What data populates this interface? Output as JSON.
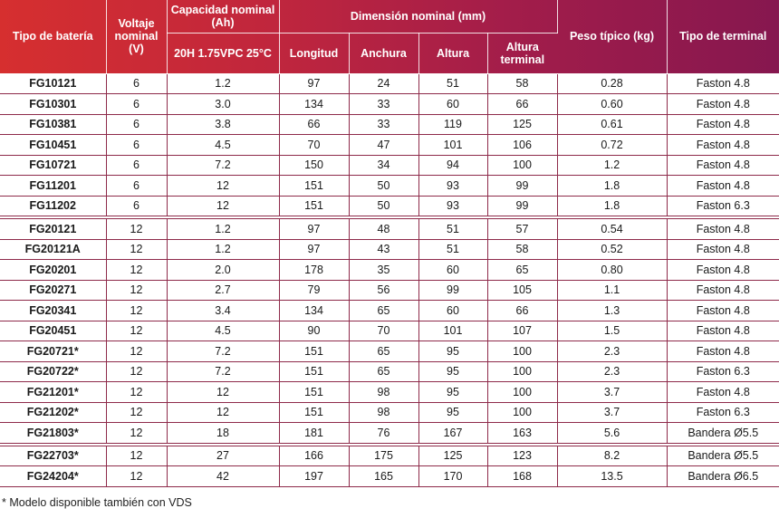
{
  "headers": {
    "tipo": "Tipo de batería",
    "voltaje": "Voltaje nominal (V)",
    "capacidad": "Capacidad nominal (Ah)",
    "capacidad_sub": "20H 1.75VPC 25°C",
    "dimension": "Dimensión nominal (mm)",
    "longitud": "Longitud",
    "anchura": "Anchura",
    "altura": "Altura",
    "altura_terminal": "Altura terminal",
    "peso": "Peso típico (kg)",
    "terminal": "Tipo de terminal"
  },
  "rows": [
    [
      "FG10121",
      "6",
      "1.2",
      "97",
      "24",
      "51",
      "58",
      "0.28",
      "Faston 4.8"
    ],
    [
      "FG10301",
      "6",
      "3.0",
      "134",
      "33",
      "60",
      "66",
      "0.60",
      "Faston 4.8"
    ],
    [
      "FG10381",
      "6",
      "3.8",
      "66",
      "33",
      "119",
      "125",
      "0.61",
      "Faston 4.8"
    ],
    [
      "FG10451",
      "6",
      "4.5",
      "70",
      "47",
      "101",
      "106",
      "0.72",
      "Faston 4.8"
    ],
    [
      "FG10721",
      "6",
      "7.2",
      "150",
      "34",
      "94",
      "100",
      "1.2",
      "Faston 4.8"
    ],
    [
      "FG11201",
      "6",
      "12",
      "151",
      "50",
      "93",
      "99",
      "1.8",
      "Faston 4.8"
    ],
    [
      "FG11202",
      "6",
      "12",
      "151",
      "50",
      "93",
      "99",
      "1.8",
      "Faston 6.3"
    ],
    [
      "FG20121",
      "12",
      "1.2",
      "97",
      "48",
      "51",
      "57",
      "0.54",
      "Faston 4.8"
    ],
    [
      "FG20121A",
      "12",
      "1.2",
      "97",
      "43",
      "51",
      "58",
      "0.52",
      "Faston 4.8"
    ],
    [
      "FG20201",
      "12",
      "2.0",
      "178",
      "35",
      "60",
      "65",
      "0.80",
      "Faston 4.8"
    ],
    [
      "FG20271",
      "12",
      "2.7",
      "79",
      "56",
      "99",
      "105",
      "1.1",
      "Faston 4.8"
    ],
    [
      "FG20341",
      "12",
      "3.4",
      "134",
      "65",
      "60",
      "66",
      "1.3",
      "Faston 4.8"
    ],
    [
      "FG20451",
      "12",
      "4.5",
      "90",
      "70",
      "101",
      "107",
      "1.5",
      "Faston 4.8"
    ],
    [
      "FG20721*",
      "12",
      "7.2",
      "151",
      "65",
      "95",
      "100",
      "2.3",
      "Faston 4.8"
    ],
    [
      "FG20722*",
      "12",
      "7.2",
      "151",
      "65",
      "95",
      "100",
      "2.3",
      "Faston 6.3"
    ],
    [
      "FG21201*",
      "12",
      "12",
      "151",
      "98",
      "95",
      "100",
      "3.7",
      "Faston 4.8"
    ],
    [
      "FG21202*",
      "12",
      "12",
      "151",
      "98",
      "95",
      "100",
      "3.7",
      "Faston 6.3"
    ],
    [
      "FG21803*",
      "12",
      "18",
      "181",
      "76",
      "167",
      "163",
      "5.6",
      "Bandera Ø5.5"
    ],
    [
      "FG22703*",
      "12",
      "27",
      "166",
      "175",
      "125",
      "123",
      "8.2",
      "Bandera Ø5.5"
    ],
    [
      "FG24204*",
      "12",
      "42",
      "197",
      "165",
      "170",
      "168",
      "13.5",
      "Bandera Ø6.5"
    ]
  ],
  "footnote": "* Modelo disponible también con VDS"
}
